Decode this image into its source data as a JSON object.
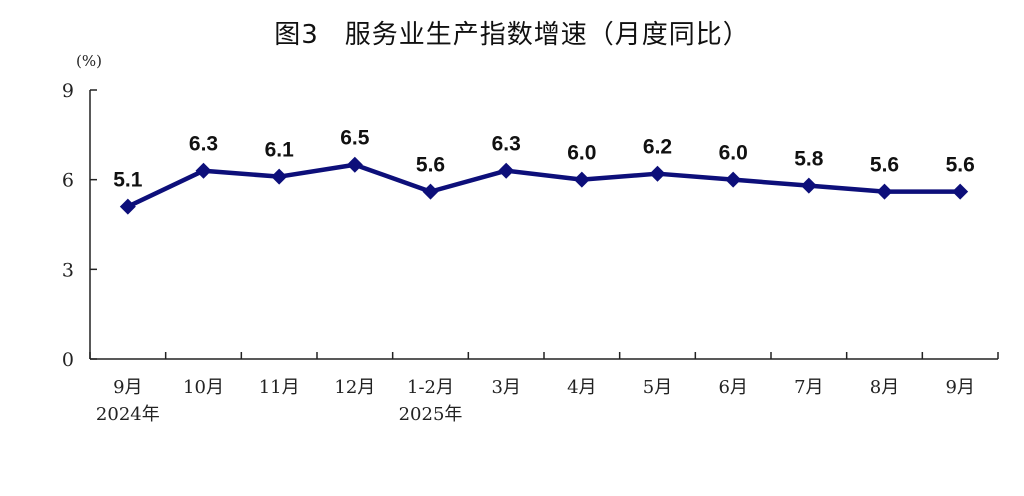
{
  "chart_data": {
    "type": "line",
    "title_prefix": "图3",
    "title": "服务业生产指数增速（月度同比）",
    "ylabel": "(%)",
    "xlabel": "",
    "ylim": [
      0,
      9
    ],
    "yticks": [
      "0",
      "3",
      "6",
      "9"
    ],
    "grid": false,
    "legend": "none",
    "categories": [
      "9月",
      "10月",
      "11月",
      "12月",
      "1-2月",
      "3月",
      "4月",
      "5月",
      "6月",
      "7月",
      "8月",
      "9月"
    ],
    "category_sublabels": [
      "2024年",
      "",
      "",
      "",
      "2025年",
      "",
      "",
      "",
      "",
      "",
      "",
      ""
    ],
    "series": [
      {
        "values": [
          5.1,
          6.3,
          6.1,
          6.5,
          5.6,
          6.3,
          6.0,
          6.2,
          6.0,
          5.8,
          5.6,
          5.6
        ],
        "labels": [
          "5.1",
          "6.3",
          "6.1",
          "6.5",
          "5.6",
          "6.3",
          "6.0",
          "6.2",
          "6.0",
          "5.8",
          "5.6",
          "5.6"
        ],
        "color": "#0d0f7a"
      }
    ],
    "axis_color": "#222222"
  }
}
